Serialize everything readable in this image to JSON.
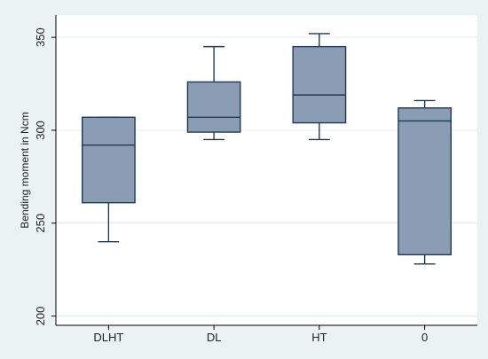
{
  "chart_data": {
    "type": "box",
    "ylabel": "Bending moment in Ncm",
    "xlabel": "",
    "ylim": [
      195,
      362
    ],
    "yticks": [
      200,
      250,
      300,
      350
    ],
    "grid": true,
    "categories": [
      "DLHT",
      "DL",
      "HT",
      "0"
    ],
    "boxes": [
      {
        "category": "DLHT",
        "min": 240,
        "q1": 261,
        "median": 292,
        "q3": 307,
        "max": 307
      },
      {
        "category": "DL",
        "min": 295,
        "q1": 299,
        "median": 307,
        "q3": 326,
        "max": 345
      },
      {
        "category": "HT",
        "min": 295,
        "q1": 304,
        "median": 319,
        "q3": 345,
        "max": 352
      },
      {
        "category": "0",
        "min": 228,
        "q1": 233,
        "median": 305,
        "q3": 312,
        "max": 316
      }
    ]
  },
  "colors": {
    "background": "#eaf2f3",
    "plot_background": "#ffffff",
    "box_fill": "#8b9db5",
    "box_stroke": "#1f3a52",
    "grid": "#e4ecec"
  }
}
